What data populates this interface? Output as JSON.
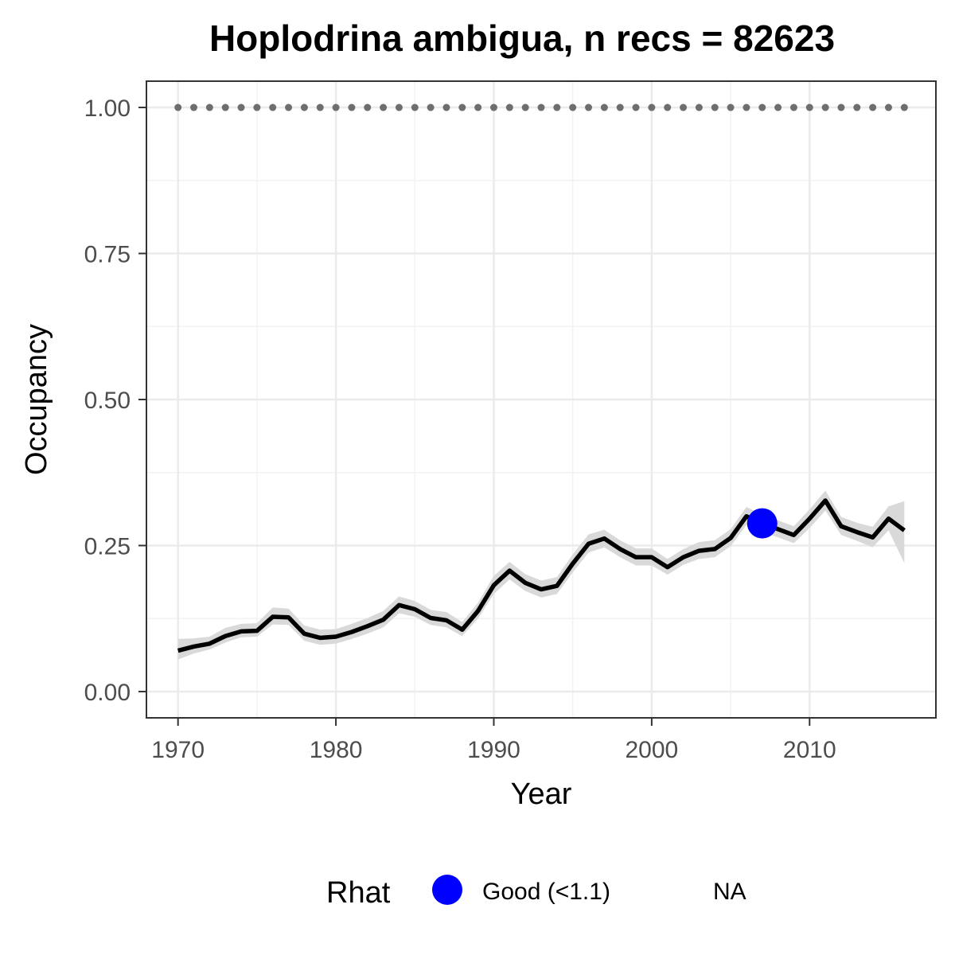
{
  "chart_data": {
    "type": "line",
    "title": "Hoplodrina ambigua, n recs = 82623",
    "xlabel": "Year",
    "ylabel": "Occupancy",
    "xlim": [
      1968,
      2018
    ],
    "ylim": [
      -0.045,
      1.045
    ],
    "x_ticks": [
      1970,
      1980,
      1990,
      2000,
      2010
    ],
    "x_tick_labels": [
      "1970",
      "1980",
      "1990",
      "2000",
      "2010"
    ],
    "y_ticks": [
      0.0,
      0.25,
      0.5,
      0.75,
      1.0
    ],
    "y_tick_labels": [
      "0.00",
      "0.25",
      "0.50",
      "0.75",
      "1.00"
    ],
    "grid": true,
    "series": [
      {
        "role": "occupancy-mean",
        "color": "#000000",
        "x": [
          1970,
          1971,
          1972,
          1973,
          1974,
          1975,
          1976,
          1977,
          1978,
          1979,
          1980,
          1981,
          1982,
          1983,
          1984,
          1985,
          1986,
          1987,
          1988,
          1989,
          1990,
          1991,
          1992,
          1993,
          1994,
          1995,
          1996,
          1997,
          1998,
          1999,
          2000,
          2001,
          2002,
          2003,
          2004,
          2005,
          2006,
          2007,
          2008,
          2009,
          2010,
          2011,
          2012,
          2013,
          2014,
          2015,
          2016
        ],
        "y": [
          0.07,
          0.077,
          0.082,
          0.095,
          0.103,
          0.104,
          0.128,
          0.127,
          0.099,
          0.092,
          0.094,
          0.102,
          0.112,
          0.123,
          0.148,
          0.141,
          0.126,
          0.122,
          0.106,
          0.138,
          0.182,
          0.207,
          0.186,
          0.175,
          0.181,
          0.219,
          0.253,
          0.262,
          0.244,
          0.23,
          0.23,
          0.213,
          0.23,
          0.241,
          0.244,
          0.263,
          0.3,
          0.288,
          0.278,
          0.268,
          0.296,
          0.327,
          0.283,
          0.273,
          0.264,
          0.296,
          0.276
        ],
        "lower": [
          0.055,
          0.065,
          0.072,
          0.084,
          0.093,
          0.094,
          0.115,
          0.114,
          0.087,
          0.08,
          0.082,
          0.09,
          0.099,
          0.11,
          0.134,
          0.128,
          0.114,
          0.11,
          0.095,
          0.125,
          0.167,
          0.192,
          0.172,
          0.161,
          0.167,
          0.204,
          0.238,
          0.247,
          0.23,
          0.216,
          0.216,
          0.2,
          0.217,
          0.227,
          0.23,
          0.249,
          0.285,
          0.273,
          0.264,
          0.254,
          0.28,
          0.31,
          0.268,
          0.258,
          0.247,
          0.276,
          0.22
        ],
        "upper": [
          0.09,
          0.091,
          0.094,
          0.109,
          0.116,
          0.117,
          0.144,
          0.142,
          0.113,
          0.106,
          0.107,
          0.116,
          0.126,
          0.138,
          0.163,
          0.155,
          0.14,
          0.136,
          0.119,
          0.152,
          0.198,
          0.222,
          0.201,
          0.19,
          0.196,
          0.235,
          0.269,
          0.277,
          0.259,
          0.245,
          0.245,
          0.227,
          0.244,
          0.256,
          0.259,
          0.278,
          0.316,
          0.303,
          0.293,
          0.283,
          0.312,
          0.344,
          0.299,
          0.289,
          0.282,
          0.317,
          0.326
        ],
        "ribbon_color": "#d9d9d9"
      },
      {
        "role": "upper-bound-dotted",
        "color": "#6e6e6e",
        "x": [
          1970,
          1971,
          1972,
          1973,
          1974,
          1975,
          1976,
          1977,
          1978,
          1979,
          1980,
          1981,
          1982,
          1983,
          1984,
          1985,
          1986,
          1987,
          1988,
          1989,
          1990,
          1991,
          1992,
          1993,
          1994,
          1995,
          1996,
          1997,
          1998,
          1999,
          2000,
          2001,
          2002,
          2003,
          2004,
          2005,
          2006,
          2007,
          2008,
          2009,
          2010,
          2011,
          2012,
          2013,
          2014,
          2015,
          2016
        ],
        "y": [
          1,
          1,
          1,
          1,
          1,
          1,
          1,
          1,
          1,
          1,
          1,
          1,
          1,
          1,
          1,
          1,
          1,
          1,
          1,
          1,
          1,
          1,
          1,
          1,
          1,
          1,
          1,
          1,
          1,
          1,
          1,
          1,
          1,
          1,
          1,
          1,
          1,
          1,
          1,
          1,
          1,
          1,
          1,
          1,
          1,
          1,
          1
        ]
      }
    ],
    "rhat_points": [
      {
        "x": 2007,
        "y": 0.288,
        "category": "Good (<1.1)",
        "color": "#0000ff"
      }
    ],
    "legend": {
      "title": "Rhat",
      "position": "bottom",
      "items": [
        {
          "label": "Good (<1.1)",
          "color": "#0000ff",
          "marker": "circle"
        },
        {
          "label": "NA",
          "color": "",
          "marker": "none"
        }
      ]
    }
  }
}
